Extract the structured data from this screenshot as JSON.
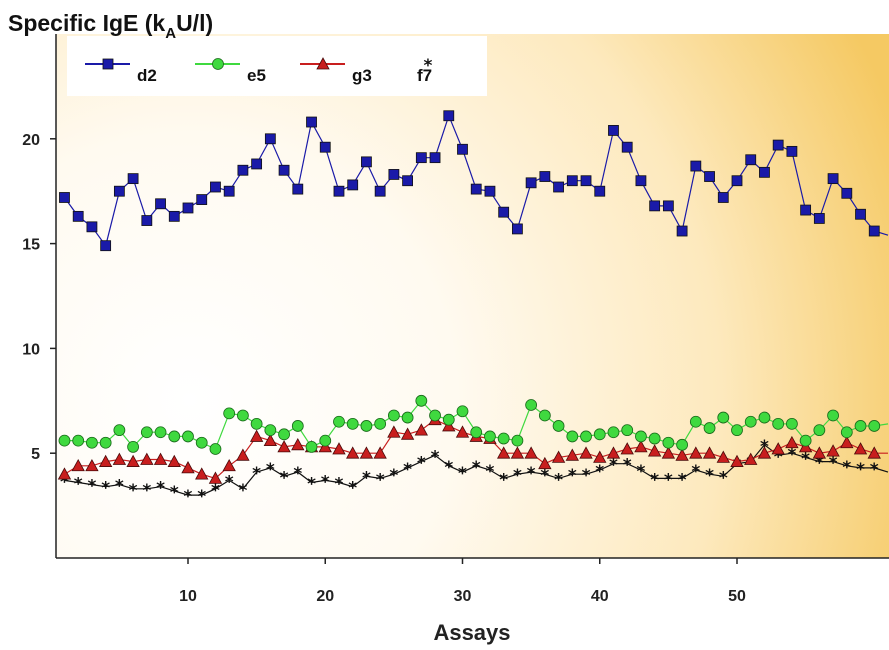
{
  "chart_data": {
    "type": "line",
    "title_parts": {
      "pre": "Specific IgE (k",
      "sub": "A",
      "post": "U/l)"
    },
    "xlabel": "Assays",
    "xlim": [
      0,
      61
    ],
    "ylim": [
      0,
      25
    ],
    "xticks": [
      10,
      20,
      30,
      40,
      50
    ],
    "yticks": [
      5,
      10,
      15,
      20
    ],
    "legend_position": "top-left",
    "grid": false,
    "x": [
      1,
      2,
      3,
      4,
      5,
      6,
      7,
      8,
      9,
      10,
      11,
      12,
      13,
      14,
      15,
      16,
      17,
      18,
      19,
      20,
      21,
      22,
      23,
      24,
      25,
      26,
      27,
      28,
      29,
      30,
      31,
      32,
      33,
      34,
      35,
      36,
      37,
      38,
      39,
      40,
      41,
      42,
      43,
      44,
      45,
      46,
      47,
      48,
      49,
      50,
      51,
      52,
      53,
      54,
      55,
      56,
      57,
      58,
      59,
      60,
      61
    ],
    "series": [
      {
        "name": "d2",
        "color": "#1a1aa8",
        "marker": "square",
        "values": [
          17.2,
          16.3,
          15.8,
          14.9,
          17.5,
          18.1,
          16.1,
          16.9,
          16.3,
          16.7,
          17.1,
          17.7,
          17.5,
          18.5,
          18.8,
          20.0,
          18.5,
          17.6,
          20.8,
          19.6,
          17.5,
          17.8,
          18.9,
          17.5,
          18.3,
          18.0,
          19.1,
          19.1,
          21.1,
          19.5,
          17.6,
          17.5,
          16.5,
          15.7,
          17.9,
          18.2,
          17.7,
          18.0,
          18.0,
          17.5,
          20.4,
          19.6,
          18.0,
          16.8,
          16.8,
          15.6,
          18.7,
          18.2,
          17.2,
          18.0,
          19.0,
          18.4,
          19.7,
          19.4,
          16.6,
          16.2,
          18.1,
          17.4,
          16.4,
          15.6,
          15.4
        ]
      },
      {
        "name": "e5",
        "color": "#3fd93f",
        "marker": "circle",
        "values": [
          5.6,
          5.6,
          5.5,
          5.5,
          6.1,
          5.3,
          6.0,
          6.0,
          5.8,
          5.8,
          5.5,
          5.2,
          6.9,
          6.8,
          6.4,
          6.1,
          5.9,
          6.3,
          5.3,
          5.6,
          6.5,
          6.4,
          6.3,
          6.4,
          6.8,
          6.7,
          7.5,
          6.8,
          6.6,
          7.0,
          6.0,
          5.8,
          5.7,
          5.6,
          7.3,
          6.8,
          6.3,
          5.8,
          5.8,
          5.9,
          6.0,
          6.1,
          5.8,
          5.7,
          5.5,
          5.4,
          6.5,
          6.2,
          6.7,
          6.1,
          6.5,
          6.7,
          6.4,
          6.4,
          5.6,
          6.1,
          6.8,
          6.0,
          6.3,
          6.3,
          6.4
        ]
      },
      {
        "name": "g3",
        "color": "#c81e1e",
        "marker": "triangle",
        "values": [
          4.0,
          4.4,
          4.4,
          4.6,
          4.7,
          4.6,
          4.7,
          4.7,
          4.6,
          4.3,
          4.0,
          3.8,
          4.4,
          4.9,
          5.8,
          5.6,
          5.3,
          5.4,
          5.3,
          5.3,
          5.2,
          5.0,
          5.0,
          5.0,
          6.0,
          5.9,
          6.1,
          6.6,
          6.3,
          6.0,
          5.8,
          5.7,
          5.0,
          5.0,
          5.0,
          4.5,
          4.8,
          4.9,
          5.0,
          4.8,
          5.0,
          5.2,
          5.3,
          5.1,
          5.0,
          4.9,
          5.0,
          5.0,
          4.8,
          4.6,
          4.7,
          5.0,
          5.2,
          5.5,
          5.3,
          5.0,
          5.1,
          5.5,
          5.2,
          5.0,
          5.0
        ]
      },
      {
        "name": "f7",
        "color": "#111111",
        "marker": "star",
        "values": [
          3.7,
          3.6,
          3.5,
          3.4,
          3.5,
          3.3,
          3.3,
          3.4,
          3.2,
          3.0,
          3.0,
          3.3,
          3.7,
          3.3,
          4.1,
          4.3,
          3.9,
          4.1,
          3.6,
          3.7,
          3.6,
          3.4,
          3.9,
          3.8,
          4.0,
          4.3,
          4.6,
          4.9,
          4.4,
          4.1,
          4.4,
          4.2,
          3.8,
          4.0,
          4.1,
          4.0,
          3.8,
          4.0,
          4.0,
          4.2,
          4.5,
          4.5,
          4.2,
          3.8,
          3.8,
          3.8,
          4.2,
          4.0,
          3.9,
          4.5,
          4.6,
          5.4,
          4.9,
          5.0,
          4.8,
          4.6,
          4.6,
          4.4,
          4.3,
          4.3,
          4.1
        ]
      }
    ]
  }
}
